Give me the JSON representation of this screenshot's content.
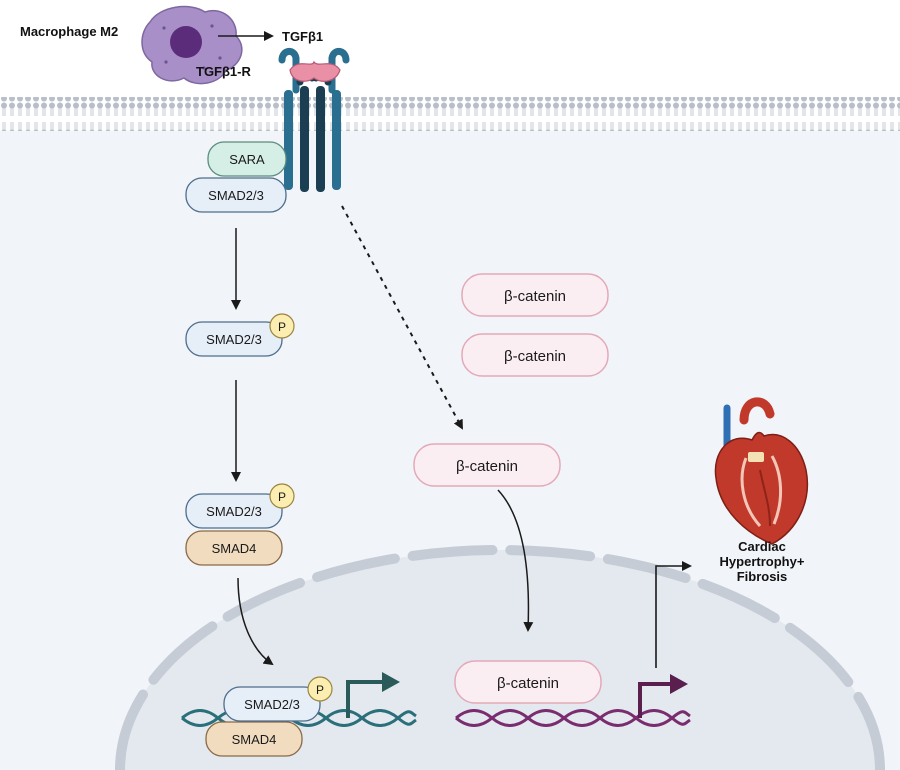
{
  "labels": {
    "macrophage": "Macrophage M2",
    "ligand": "TGFβ1",
    "receptor": "TGFβ1-R",
    "outcome_line1": "Cardiac",
    "outcome_line2": "Hypertrophy+",
    "outcome_line3": "Fibrosis"
  },
  "proteins": {
    "sara": "SARA",
    "smad23": "SMAD2/3",
    "smad4": "SMAD4",
    "phospho": "P",
    "beta_catenin": "β-catenin"
  },
  "colors": {
    "membrane": "#c9ced6",
    "cytoplasm": "#f1f4f8",
    "nucleus": "#e4e9ef",
    "smad_fill": "#e6eef7",
    "smad_stroke": "#4d6d8c",
    "sara_fill": "#d6efe6",
    "smad4_fill": "#f1dcc0",
    "smad4_stroke": "#8a6a45",
    "phospho_fill": "#fbeeb0",
    "catenin_fill": "#fbeef2",
    "catenin_stroke": "#e4a9b8",
    "receptor": "#2a6f8f",
    "ligand": "#e98fa6",
    "macrophage": "#a88fc8",
    "dna_teal": "#2a6f7a",
    "dna_purple": "#7a2d6e",
    "heart_red": "#c0392b"
  }
}
